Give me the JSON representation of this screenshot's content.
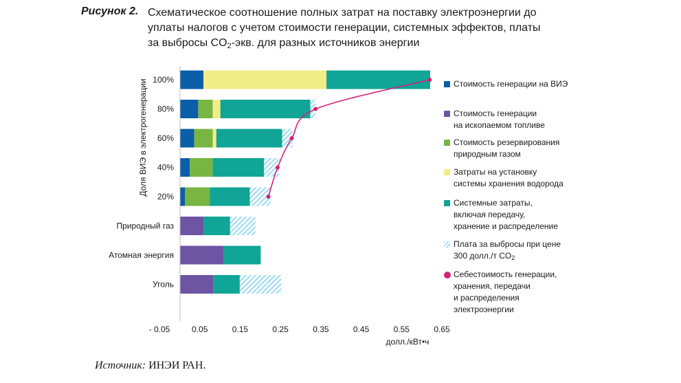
{
  "caption": {
    "label": "Рисунок 2.",
    "line1": "Схематическое соотношение полных затрат на поставку электроэнергии до",
    "line2": "уплаты налогов с учетом стоимости генерации, системных эффектов, платы",
    "line3_pre": "за выбросы CO",
    "line3_sub": "2",
    "line3_post": "-экв. для разных источников энергии"
  },
  "colors": {
    "gen_res": "#0b5ea8",
    "gen_fossil": "#6e55a3",
    "reserve_gas": "#78b543",
    "storage_h2": "#f0ed86",
    "system": "#10a596",
    "co2": "#a9def0",
    "cost_curve": "#d4217a"
  },
  "source": {
    "label": "Источник:",
    "text": " ИНЭИ РАН."
  },
  "chart_data": {
    "type": "bar",
    "orientation": "horizontal-stacked",
    "ylabel": "Доля ВИЭ в электрогенерации",
    "xlabel": "долл./кВт•ч",
    "xlim": [
      -0.05,
      0.65
    ],
    "xticks": [
      -0.05,
      0.05,
      0.15,
      0.25,
      0.35,
      0.45,
      0.55,
      0.65
    ],
    "xtick_labels": [
      "- 0.05",
      "0.05",
      "0.15",
      "0.25",
      "0.35",
      "0.45",
      "0.55",
      "0.65"
    ],
    "categories": [
      "100%",
      "80%",
      "60%",
      "40%",
      "20%",
      "Природный газ",
      "Атомная энергия",
      "Уголь"
    ],
    "series": [
      {
        "key": "gen_res",
        "name": "Стоимость генерации на ВИЭ",
        "values": [
          0.058,
          0.045,
          0.035,
          0.024,
          0.012,
          0,
          0,
          0
        ]
      },
      {
        "key": "gen_fossil",
        "name": "Стоимость генерации на ископаемом топливе",
        "values": [
          0,
          0,
          0,
          0,
          0,
          0.059,
          0.108,
          0.083
        ]
      },
      {
        "key": "reserve_gas",
        "name": "Стоимость резервирования природным газом",
        "values": [
          0,
          0.036,
          0.046,
          0.057,
          0.062,
          0,
          0,
          0
        ]
      },
      {
        "key": "storage_h2",
        "name": "Затраты на установку системы хранения водорода",
        "values": [
          0.305,
          0.019,
          0.009,
          0,
          0,
          0,
          0,
          0
        ]
      },
      {
        "key": "system",
        "name": "Системные затраты, включая передачу, хранение и распределение",
        "values": [
          0.257,
          0.223,
          0.163,
          0.127,
          0.099,
          0.065,
          0.092,
          0.065
        ]
      },
      {
        "key": "co2",
        "name": "Плата за выбросы при цене 300 долл./т CO2",
        "values": [
          0,
          0.013,
          0.026,
          0.038,
          0.051,
          0.063,
          0,
          0.103
        ]
      }
    ],
    "cost_curve": {
      "name": "Себестоимость генерации, хранения, передачи и распределения электроэнергии",
      "categories": [
        "20%",
        "40%",
        "60%",
        "80%",
        "100%"
      ],
      "values": [
        0.22,
        0.243,
        0.278,
        0.337,
        0.62
      ]
    },
    "legend": [
      {
        "key": "gen_res",
        "lines": [
          "Стоимость генерации на ВИЭ"
        ]
      },
      {
        "key": "gen_fossil",
        "lines": [
          "Стоимость генерации",
          "на ископаемом топливе"
        ]
      },
      {
        "key": "reserve_gas",
        "lines": [
          "Стоимость резервирования",
          "природным газом"
        ]
      },
      {
        "key": "storage_h2",
        "lines": [
          "Затраты на установку",
          "системы хранения водорода"
        ]
      },
      {
        "key": "system",
        "lines": [
          "Системные затраты,",
          "включая передачу,",
          "хранение и распределение"
        ]
      },
      {
        "key": "co2",
        "lines": [
          "Плата за выбросы при цене",
          "300 долл./т CO"
        ],
        "sub": "2"
      },
      {
        "key": "cost_curve",
        "lines": [
          "Себестоимость генерации,",
          "хранения, передачи",
          "и распределения",
          "электроэнергии"
        ]
      }
    ]
  }
}
